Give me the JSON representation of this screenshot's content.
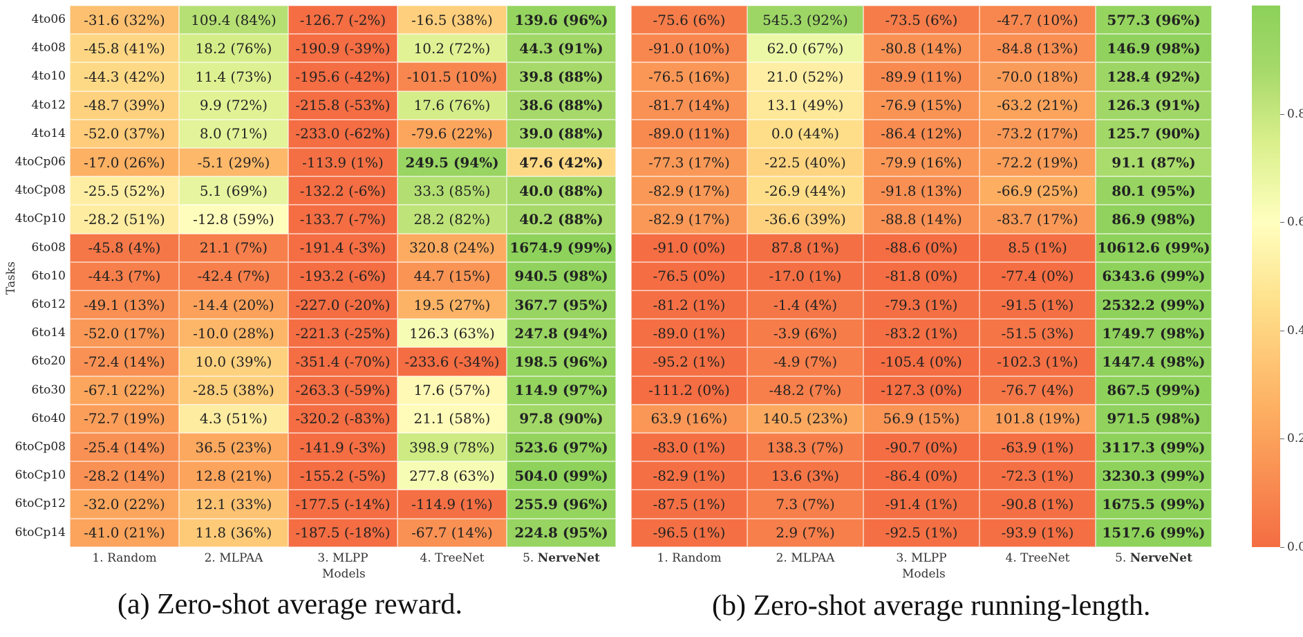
{
  "chart_data": [
    {
      "type": "heatmap",
      "panel": "a",
      "caption": "(a) Zero-shot average reward.",
      "xlabel": "Models",
      "ylabel": "Tasks",
      "rows": [
        "4to06",
        "4to08",
        "4to10",
        "4to12",
        "4to14",
        "4toCp06",
        "4toCp08",
        "4toCp10",
        "6to08",
        "6to10",
        "6to12",
        "6to14",
        "6to20",
        "6to30",
        "6to40",
        "6toCp08",
        "6toCp10",
        "6toCp12",
        "6toCp14"
      ],
      "columns": [
        {
          "num": "1.",
          "name": "Random",
          "bold": false
        },
        {
          "num": "2.",
          "name": "MLPAA",
          "bold": false
        },
        {
          "num": "3.",
          "name": "MLPP",
          "bold": false
        },
        {
          "num": "4.",
          "name": "TreeNet",
          "bold": false
        },
        {
          "num": "5.",
          "name": "NerveNet",
          "bold": true
        }
      ],
      "cells": [
        [
          "-31.6 (32%)",
          "109.4 (84%)",
          "-126.7 (-2%)",
          "-16.5 (38%)",
          "139.6 (96%)"
        ],
        [
          "-45.8 (41%)",
          "18.2 (76%)",
          "-190.9 (-39%)",
          "10.2 (72%)",
          "44.3 (91%)"
        ],
        [
          "-44.3 (42%)",
          "11.4 (73%)",
          "-195.6 (-42%)",
          "-101.5 (10%)",
          "39.8 (88%)"
        ],
        [
          "-48.7 (39%)",
          "9.9 (72%)",
          "-215.8 (-53%)",
          "17.6 (76%)",
          "38.6 (88%)"
        ],
        [
          "-52.0 (37%)",
          "8.0 (71%)",
          "-233.0 (-62%)",
          "-79.6 (22%)",
          "39.0 (88%)"
        ],
        [
          "-17.0 (26%)",
          "-5.1 (29%)",
          "-113.9 (1%)",
          "249.5 (94%)",
          "47.6 (42%)"
        ],
        [
          "-25.5 (52%)",
          "5.1 (69%)",
          "-132.2 (-6%)",
          "33.3 (85%)",
          "40.0 (88%)"
        ],
        [
          "-28.2 (51%)",
          "-12.8 (59%)",
          "-133.7 (-7%)",
          "28.2 (82%)",
          "40.2 (88%)"
        ],
        [
          "-45.8 (4%)",
          "21.1 (7%)",
          "-191.4 (-3%)",
          "320.8 (24%)",
          "1674.9 (99%)"
        ],
        [
          "-44.3 (7%)",
          "-42.4 (7%)",
          "-193.2 (-6%)",
          "44.7 (15%)",
          "940.5 (98%)"
        ],
        [
          "-49.1 (13%)",
          "-14.4 (20%)",
          "-227.0 (-20%)",
          "19.5 (27%)",
          "367.7 (95%)"
        ],
        [
          "-52.0 (17%)",
          "-10.0 (28%)",
          "-221.3 (-25%)",
          "126.3 (63%)",
          "247.8 (94%)"
        ],
        [
          "-72.4 (14%)",
          "10.0 (39%)",
          "-351.4 (-70%)",
          "-233.6 (-34%)",
          "198.5 (96%)"
        ],
        [
          "-67.1 (22%)",
          "-28.5 (38%)",
          "-263.3 (-59%)",
          "17.6 (57%)",
          "114.9 (97%)"
        ],
        [
          "-72.7 (19%)",
          "4.3 (51%)",
          "-320.2 (-83%)",
          "21.1 (58%)",
          "97.8 (90%)"
        ],
        [
          "-25.4 (14%)",
          "36.5 (23%)",
          "-141.9 (-3%)",
          "398.9 (78%)",
          "523.6 (97%)"
        ],
        [
          "-28.2 (14%)",
          "12.8 (21%)",
          "-155.2 (-5%)",
          "277.8 (63%)",
          "504.0 (99%)"
        ],
        [
          "-32.0 (22%)",
          "12.1 (33%)",
          "-177.5 (-14%)",
          "-114.9 (1%)",
          "255.9 (96%)"
        ],
        [
          "-41.0 (21%)",
          "11.8 (36%)",
          "-187.5 (-18%)",
          "-67.7 (14%)",
          "224.8 (95%)"
        ]
      ],
      "bold": [
        [
          4
        ],
        [
          4
        ],
        [
          4
        ],
        [
          4
        ],
        [
          4
        ],
        [
          3,
          4
        ],
        [
          4
        ],
        [
          4
        ],
        [
          4
        ],
        [
          4
        ],
        [
          4
        ],
        [
          4
        ],
        [
          4
        ],
        [
          4
        ],
        [
          4
        ],
        [
          4
        ],
        [
          4
        ],
        [
          4
        ],
        [
          4
        ]
      ]
    },
    {
      "type": "heatmap",
      "panel": "b",
      "caption": "(b) Zero-shot average running-length.",
      "xlabel": "Models",
      "ylabel": "",
      "columns": [
        {
          "num": "1.",
          "name": "Random",
          "bold": false
        },
        {
          "num": "2.",
          "name": "MLPAA",
          "bold": false
        },
        {
          "num": "3.",
          "name": "MLPP",
          "bold": false
        },
        {
          "num": "4.",
          "name": "TreeNet",
          "bold": false
        },
        {
          "num": "5.",
          "name": "NerveNet",
          "bold": true
        }
      ],
      "cells": [
        [
          "-75.6 (6%)",
          "545.3 (92%)",
          "-73.5 (6%)",
          "-47.7 (10%)",
          "577.3 (96%)"
        ],
        [
          "-91.0 (10%)",
          "62.0 (67%)",
          "-80.8 (14%)",
          "-84.8 (13%)",
          "146.9 (98%)"
        ],
        [
          "-76.5 (16%)",
          "21.0 (52%)",
          "-89.9 (11%)",
          "-70.0 (18%)",
          "128.4 (92%)"
        ],
        [
          "-81.7 (14%)",
          "13.1 (49%)",
          "-76.9 (15%)",
          "-63.2 (21%)",
          "126.3 (91%)"
        ],
        [
          "-89.0 (11%)",
          "0.0 (44%)",
          "-86.4 (12%)",
          "-73.2 (17%)",
          "125.7 (90%)"
        ],
        [
          "-77.3 (17%)",
          "-22.5 (40%)",
          "-79.9 (16%)",
          "-72.2 (19%)",
          "91.1 (87%)"
        ],
        [
          "-82.9 (17%)",
          "-26.9 (44%)",
          "-91.8 (13%)",
          "-66.9 (25%)",
          "80.1 (95%)"
        ],
        [
          "-82.9 (17%)",
          "-36.6 (39%)",
          "-88.8 (14%)",
          "-83.7 (17%)",
          "86.9 (98%)"
        ],
        [
          "-91.0 (0%)",
          "87.8 (1%)",
          "-88.6 (0%)",
          "8.5 (1%)",
          "10612.6 (99%)"
        ],
        [
          "-76.5 (0%)",
          "-17.0 (1%)",
          "-81.8 (0%)",
          "-77.4 (0%)",
          "6343.6 (99%)"
        ],
        [
          "-81.2 (1%)",
          "-1.4 (4%)",
          "-79.3 (1%)",
          "-91.5 (1%)",
          "2532.2 (99%)"
        ],
        [
          "-89.0 (1%)",
          "-3.9 (6%)",
          "-83.2 (1%)",
          "-51.5 (3%)",
          "1749.7 (98%)"
        ],
        [
          "-95.2 (1%)",
          "-4.9 (7%)",
          "-105.4 (0%)",
          "-102.3 (1%)",
          "1447.4 (98%)"
        ],
        [
          "-111.2 (0%)",
          "-48.2 (7%)",
          "-127.3 (0%)",
          "-76.7 (4%)",
          "867.5 (99%)"
        ],
        [
          "63.9 (16%)",
          "140.5 (23%)",
          "56.9 (15%)",
          "101.8 (19%)",
          "971.5 (98%)"
        ],
        [
          "-83.0 (1%)",
          "138.3 (7%)",
          "-90.7 (0%)",
          "-63.9 (1%)",
          "3117.3 (99%)"
        ],
        [
          "-82.9 (1%)",
          "13.6 (3%)",
          "-86.4 (0%)",
          "-72.3 (1%)",
          "3230.3 (99%)"
        ],
        [
          "-87.5 (1%)",
          "7.3 (7%)",
          "-91.4 (1%)",
          "-90.8 (1%)",
          "1675.5 (99%)"
        ],
        [
          "-96.5 (1%)",
          "2.9 (7%)",
          "-92.5 (1%)",
          "-93.9 (1%)",
          "1517.6 (99%)"
        ]
      ],
      "bold": [
        [
          4
        ],
        [
          4
        ],
        [
          4
        ],
        [
          4
        ],
        [
          4
        ],
        [
          4
        ],
        [
          4
        ],
        [
          4
        ],
        [
          4
        ],
        [
          4
        ],
        [
          4
        ],
        [
          4
        ],
        [
          4
        ],
        [
          4
        ],
        [
          4
        ],
        [
          4
        ],
        [
          4
        ],
        [
          4
        ],
        [
          4
        ]
      ]
    }
  ],
  "colorbar": {
    "range": [
      0.0,
      1.0
    ],
    "ticks": [
      0.0,
      0.2,
      0.4,
      0.6,
      0.8
    ],
    "tick_labels": [
      "0.0",
      "0.2",
      "0.4",
      "0.6",
      "0.8"
    ],
    "colors": {
      "low": "#f46d43",
      "mid": "#ffffbf",
      "high": "#8cd15a"
    }
  }
}
